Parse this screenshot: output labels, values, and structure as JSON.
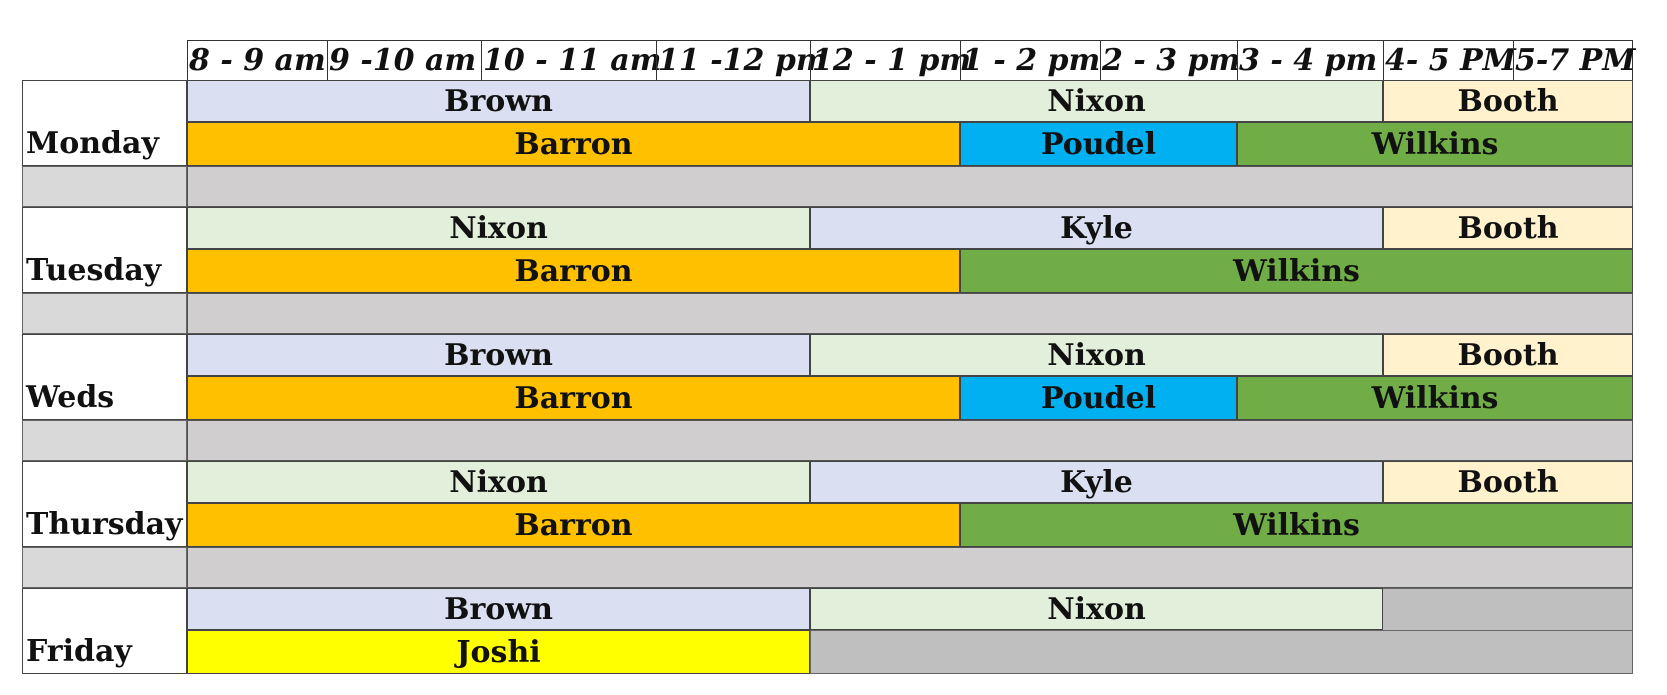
{
  "time_slots": [
    "8 - 9 am",
    "9 -10 am",
    "10 - 11 am",
    "11 -12 pm",
    "12 - 1 pm",
    "1 - 2 pm",
    "2 - 3 pm",
    "3 - 4 pm",
    "4- 5 PM",
    "5-7 PM"
  ],
  "days": [
    {
      "name": "Monday",
      "row1": [
        {
          "label": "Brown",
          "color": "#dae0f2"
        },
        {
          "label": "Nixon",
          "color": "#e2efda"
        },
        {
          "label": "Booth",
          "color": "#fff2cc"
        }
      ],
      "row2": [
        {
          "label": "Barron",
          "color": "#ffc000"
        },
        {
          "label": "Poudel",
          "color": "#00b0f0"
        },
        {
          "label": "Wilkins",
          "color": "#70ad47"
        }
      ]
    },
    {
      "name": "Tuesday",
      "row1": [
        {
          "label": "Nixon",
          "color": "#e2efda"
        },
        {
          "label": "Kyle",
          "color": "#dae0f2"
        },
        {
          "label": "Booth",
          "color": "#fff2cc"
        }
      ],
      "row2": [
        {
          "label": "Barron",
          "color": "#ffc000"
        },
        {
          "label": "Wilkins",
          "color": "#70ad47"
        }
      ]
    },
    {
      "name": "Weds",
      "row1": [
        {
          "label": "Brown",
          "color": "#dae0f2"
        },
        {
          "label": "Nixon",
          "color": "#e2efda"
        },
        {
          "label": "Booth",
          "color": "#fff2cc"
        }
      ],
      "row2": [
        {
          "label": "Barron",
          "color": "#ffc000"
        },
        {
          "label": "Poudel",
          "color": "#00b0f0"
        },
        {
          "label": "Wilkins",
          "color": "#70ad47"
        }
      ]
    },
    {
      "name": "Thursday",
      "row1": [
        {
          "label": "Nixon",
          "color": "#e2efda"
        },
        {
          "label": "Kyle",
          "color": "#dae0f2"
        },
        {
          "label": "Booth",
          "color": "#fff2cc"
        }
      ],
      "row2": [
        {
          "label": "Barron",
          "color": "#ffc000"
        },
        {
          "label": "Wilkins",
          "color": "#70ad47"
        }
      ]
    },
    {
      "name": "Friday",
      "row1": [
        {
          "label": "Brown",
          "color": "#dae0f2"
        },
        {
          "label": "Nixon",
          "color": "#e2efda"
        }
      ],
      "row2": [
        {
          "label": "Joshi",
          "color": "#ffff00"
        }
      ]
    }
  ],
  "colors": {
    "separator": "#d0cece",
    "empty_slot": "#bfbfbf"
  }
}
